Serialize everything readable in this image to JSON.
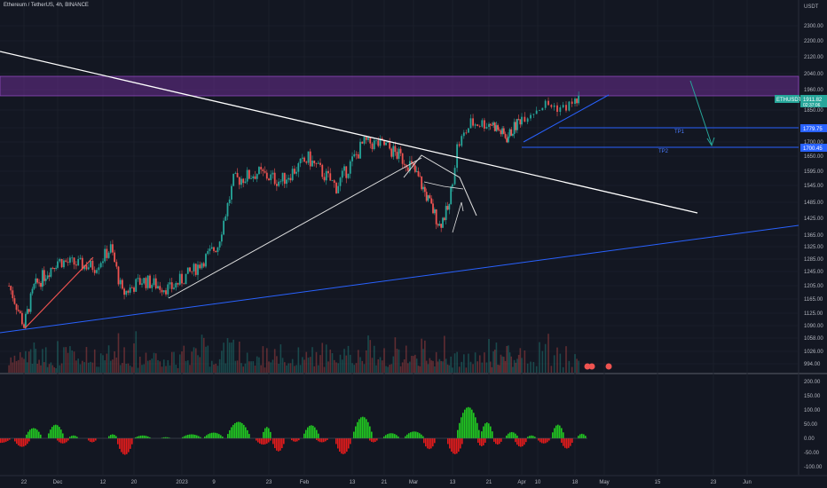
{
  "header": {
    "symbol_line": "Ethereum / TetherUS, 4h, BINANCE"
  },
  "price_axis": {
    "currency": "USDT",
    "ticks": [
      "2300.00",
      "2200.00",
      "2120.00",
      "2040.00",
      "1960.00",
      "1850.00",
      "1770.00",
      "1700.00",
      "1650.00",
      "1595.00",
      "1545.00",
      "1485.00",
      "1425.00",
      "1365.00",
      "1325.00",
      "1285.00",
      "1245.00",
      "1205.00",
      "1165.00",
      "1125.00",
      "1090.00",
      "1058.00",
      "1026.00",
      "994.00"
    ]
  },
  "price_tags": {
    "last_left": "ETHUSDT",
    "last_right": "1911.82",
    "last_sub": "02:37:06",
    "tp1_price": "1779.75",
    "tp2_price": "1700.45"
  },
  "labels": {
    "tp1": "TP1",
    "tp2": "TP2"
  },
  "osc_axis": {
    "ticks": [
      "200.00",
      "150.00",
      "100.00",
      "50.00",
      "0.00",
      "-50.00",
      "-100.00"
    ]
  },
  "time_axis": {
    "ticks": [
      "22",
      "Dec",
      "12",
      "20",
      "2023",
      "9",
      "23",
      "Feb",
      "13",
      "21",
      "Mar",
      "13",
      "21",
      "Apr",
      "10",
      "18",
      "May",
      "15",
      "23",
      "Jun"
    ]
  },
  "colors": {
    "background": "#131722",
    "zone": "#6a2d8f",
    "up": "#26a69a",
    "down": "#ef5350",
    "osc_up": "#21c821",
    "osc_down": "#e31b1b",
    "trend_blue": "#2962ff",
    "target_green": "#00897b"
  },
  "chart_data": {
    "type": "candlestick",
    "symbol": "Ethereum / TetherUS",
    "interval": "4h",
    "exchange": "BINANCE",
    "ylim": [
      994,
      2300
    ],
    "resistance_zone": [
      1935,
      2040
    ],
    "last_price": 1911.82,
    "targets": [
      {
        "name": "TP1",
        "price": 1779.75
      },
      {
        "name": "TP2",
        "price": 1700.45
      }
    ],
    "price_path": [
      {
        "x": "Nov 18",
        "y": 1205
      },
      {
        "x": "Nov 22",
        "y": 1090
      },
      {
        "x": "Nov 25",
        "y": 1200
      },
      {
        "x": "Dec 1",
        "y": 1280
      },
      {
        "x": "Dec 5",
        "y": 1270
      },
      {
        "x": "Dec 10",
        "y": 1260
      },
      {
        "x": "Dec 14",
        "y": 1320
      },
      {
        "x": "Dec 17",
        "y": 1180
      },
      {
        "x": "Dec 22",
        "y": 1220
      },
      {
        "x": "Dec 29",
        "y": 1195
      },
      {
        "x": "Jan 4",
        "y": 1250
      },
      {
        "x": "Jan 10",
        "y": 1330
      },
      {
        "x": "Jan 14",
        "y": 1560
      },
      {
        "x": "Jan 20",
        "y": 1590
      },
      {
        "x": "Jan 26",
        "y": 1560
      },
      {
        "x": "Feb 2",
        "y": 1640
      },
      {
        "x": "Feb 9",
        "y": 1540
      },
      {
        "x": "Feb 16",
        "y": 1700
      },
      {
        "x": "Feb 21",
        "y": 1690
      },
      {
        "x": "Feb 28",
        "y": 1620
      },
      {
        "x": "Mar 3",
        "y": 1560
      },
      {
        "x": "Mar 9",
        "y": 1400
      },
      {
        "x": "Mar 12",
        "y": 1470
      },
      {
        "x": "Mar 14",
        "y": 1680
      },
      {
        "x": "Mar 17",
        "y": 1790
      },
      {
        "x": "Mar 22",
        "y": 1790
      },
      {
        "x": "Mar 27",
        "y": 1720
      },
      {
        "x": "Apr 1",
        "y": 1820
      },
      {
        "x": "Apr 5",
        "y": 1880
      },
      {
        "x": "Apr 8",
        "y": 1860
      },
      {
        "x": "Apr 11",
        "y": 1911.82
      }
    ],
    "oscillator": {
      "ylim": [
        -100,
        200
      ],
      "ticks": [
        200,
        150,
        100,
        50,
        0,
        -50,
        -100
      ]
    }
  }
}
